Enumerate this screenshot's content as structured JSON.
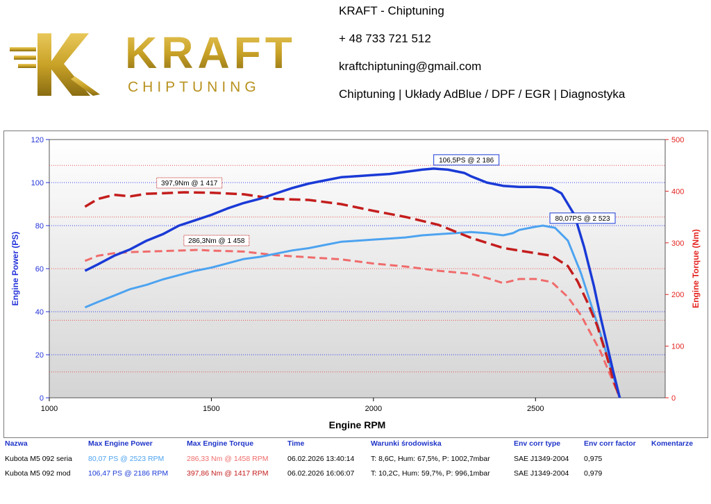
{
  "header": {
    "logo_main": "KRAFT",
    "logo_sub": "CHIPTUNING",
    "company": "KRAFT - Chiptuning",
    "phone": "+ 48 733 721 512",
    "email": "kraftchiptuning@gmail.com",
    "services": "Chiptuning | Układy AdBlue / DPF / EGR | Diagnostyka"
  },
  "colors": {
    "power_orig": "#4da3f0",
    "power_mod": "#1a3ad6",
    "torque_orig": "#f06b6b",
    "torque_mod": "#c41d1d",
    "axis_left": "#2333d9",
    "axis_right": "#e3231f",
    "table_header": "#1e34c8",
    "logo_gold": "#c9a227"
  },
  "chart_data": {
    "type": "line",
    "xlabel": "Engine RPM",
    "ylabel": "Engine Power (PS)",
    "y2label": "Engine Torque (Nm)",
    "xlim": [
      1000,
      2900
    ],
    "ylim": [
      0,
      120
    ],
    "y2lim": [
      0,
      500
    ],
    "xticks": [
      1000,
      1500,
      2000,
      2500
    ],
    "yticks": [
      0,
      20,
      40,
      60,
      80,
      100,
      120
    ],
    "y2ticks": [
      0,
      100,
      200,
      300,
      400,
      500
    ],
    "series": [
      {
        "name": "Power mod",
        "axis": "left",
        "style": "solid",
        "color_key": "power_mod",
        "x": [
          1110,
          1150,
          1200,
          1250,
          1300,
          1350,
          1400,
          1450,
          1500,
          1550,
          1600,
          1650,
          1700,
          1750,
          1800,
          1850,
          1900,
          1950,
          2000,
          2050,
          2100,
          2150,
          2186,
          2230,
          2280,
          2300,
          2350,
          2400,
          2450,
          2500,
          2550,
          2580,
          2620,
          2650,
          2680,
          2700,
          2720,
          2740,
          2760
        ],
        "y": [
          59,
          62,
          66,
          69,
          73,
          76,
          80,
          82.5,
          85,
          88,
          90.5,
          92.5,
          95,
          97.5,
          99.5,
          101,
          102.5,
          103,
          103.5,
          104,
          105,
          106,
          106.5,
          106,
          104.5,
          103,
          100,
          98.5,
          98,
          98,
          97.5,
          95,
          85,
          70,
          52,
          38,
          25,
          12,
          0
        ]
      },
      {
        "name": "Power orig",
        "axis": "left",
        "style": "solid",
        "color_key": "power_orig",
        "x": [
          1110,
          1150,
          1200,
          1250,
          1300,
          1350,
          1400,
          1450,
          1500,
          1550,
          1600,
          1650,
          1700,
          1750,
          1800,
          1850,
          1900,
          1950,
          2000,
          2050,
          2100,
          2150,
          2200,
          2250,
          2300,
          2350,
          2400,
          2430,
          2450,
          2500,
          2523,
          2560,
          2600,
          2640,
          2670,
          2700,
          2720,
          2740,
          2760
        ],
        "y": [
          42,
          44.5,
          47.5,
          50.5,
          52.5,
          55,
          57,
          59,
          60.5,
          62.5,
          64.5,
          65.5,
          67,
          68.5,
          69.5,
          71,
          72.5,
          73,
          73.5,
          74,
          74.5,
          75.5,
          76,
          76.5,
          77,
          76.5,
          75.5,
          76.5,
          78,
          79.5,
          80,
          79,
          73,
          58,
          44,
          30,
          20,
          10,
          0
        ]
      },
      {
        "name": "Torque mod",
        "axis": "right",
        "style": "dashed",
        "color_key": "torque_mod",
        "x": [
          1110,
          1150,
          1200,
          1250,
          1300,
          1350,
          1417,
          1500,
          1600,
          1700,
          1800,
          1900,
          2000,
          2100,
          2200,
          2300,
          2400,
          2450,
          2500,
          2550,
          2600,
          2630,
          2660,
          2690,
          2720,
          2740,
          2760
        ],
        "y": [
          370,
          385,
          393,
          390,
          395,
          396,
          397.9,
          397,
          394,
          385,
          383,
          375,
          362,
          350,
          335,
          310,
          290,
          285,
          280,
          275,
          255,
          225,
          185,
          140,
          80,
          35,
          0
        ]
      },
      {
        "name": "Torque orig",
        "axis": "right",
        "style": "dashed",
        "color_key": "torque_orig",
        "x": [
          1110,
          1150,
          1200,
          1250,
          1300,
          1350,
          1458,
          1500,
          1600,
          1700,
          1800,
          1900,
          2000,
          2100,
          2200,
          2300,
          2350,
          2400,
          2450,
          2500,
          2550,
          2600,
          2640,
          2670,
          2700,
          2730,
          2760
        ],
        "y": [
          265,
          275,
          280,
          282,
          283,
          284,
          286.3,
          285,
          283,
          276,
          272,
          268,
          260,
          254,
          246,
          240,
          232,
          222,
          230,
          230,
          224,
          195,
          160,
          125,
          90,
          45,
          0
        ]
      }
    ],
    "annotations": [
      {
        "text": "106,5PS @ 2 186",
        "x": 2186,
        "y": 106.5,
        "axis": "left",
        "color_key": "power_mod"
      },
      {
        "text": "80,07PS @ 2 523",
        "x": 2523,
        "y": 80.07,
        "axis": "left",
        "color_key": "power_mod"
      },
      {
        "text": "397,9Nm @ 1 417",
        "x": 1417,
        "y": 397.9,
        "axis": "right",
        "color_key": "torque_mod"
      },
      {
        "text": "286,3Nm @ 1 458",
        "x": 1458,
        "y": 286.3,
        "axis": "right",
        "color_key": "torque_mod"
      }
    ]
  },
  "results_table": {
    "headers": [
      "Nazwa",
      "Max Engine Power",
      "Max Engine Torque",
      "Time",
      "Warunki środowiska",
      "Env corr type",
      "Env corr factor",
      "Komentarze"
    ],
    "rows": [
      {
        "name": "Kubota M5 092 seria",
        "power": "80,07 PS @ 2523 RPM",
        "torque": "286,33 Nm @ 1458 RPM",
        "time": "06.02.2026 13:40:14",
        "conditions": "T: 8,6C, Hum: 67,5%, P: 1002,7mbar",
        "corr_type": "SAE J1349-2004",
        "corr_factor": "0,975",
        "comment": ""
      },
      {
        "name": "Kubota M5 092 mod",
        "power": "106,47 PS @ 2186 RPM",
        "torque": "397,86 Nm @ 1417 RPM",
        "time": "06.02.2026 16:06:07",
        "conditions": "T: 10,2C, Hum: 59,7%, P: 996,1mbar",
        "corr_type": "SAE J1349-2004",
        "corr_factor": "0,979",
        "comment": ""
      }
    ]
  }
}
